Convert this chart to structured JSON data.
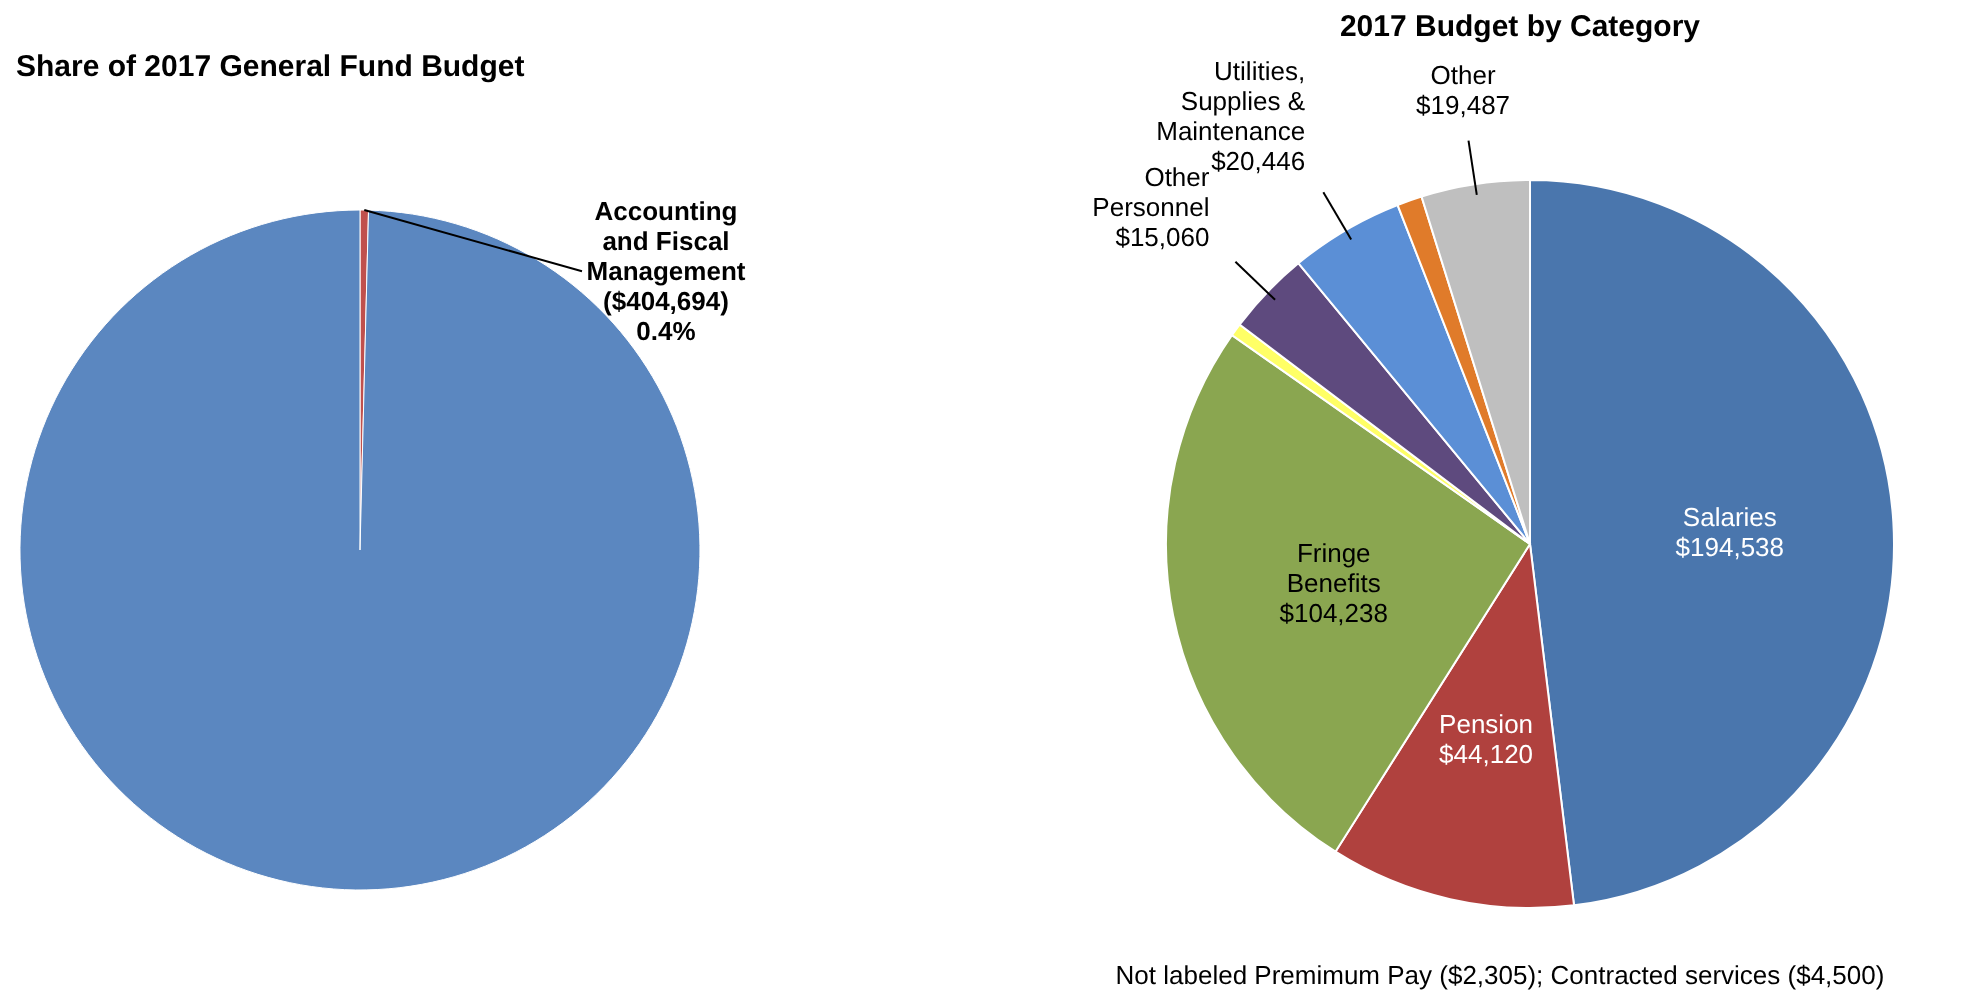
{
  "chart_data": [
    {
      "type": "pie",
      "title": "Share of 2017 General Fund Budget",
      "categories": [
        "Accounting and Fiscal Management",
        null
      ],
      "values": [
        0.4,
        99.6
      ],
      "colors": [
        "#c0504d",
        "#5b87c0"
      ],
      "value_labels": [
        "($404,694) 0.4%",
        null
      ]
    },
    {
      "type": "pie",
      "title": "2017 Budget by Category",
      "categories": [
        "Salaries",
        "Pension",
        "Fringe Benefits",
        null,
        "Other Personnel",
        "Utilities, Supplies & Maintenance",
        null,
        "Other"
      ],
      "values": [
        194538,
        44120,
        104238,
        2305,
        15060,
        20446,
        4500,
        19487
      ],
      "colors": [
        "#4a76ad",
        "#b0413e",
        "#8aa650",
        "#ffff66",
        "#5e4a7e",
        "#5b8fd6",
        "#e07b2a",
        "#bfbfbf"
      ],
      "value_labels": [
        "$194,538",
        "$44,120",
        "$104,238",
        null,
        "$15,060",
        "$20,446",
        null,
        "$19,487"
      ],
      "annotations": [
        "Not labeled  Premimum Pay ($2,305); Contracted services ($4,500)"
      ]
    }
  ]
}
